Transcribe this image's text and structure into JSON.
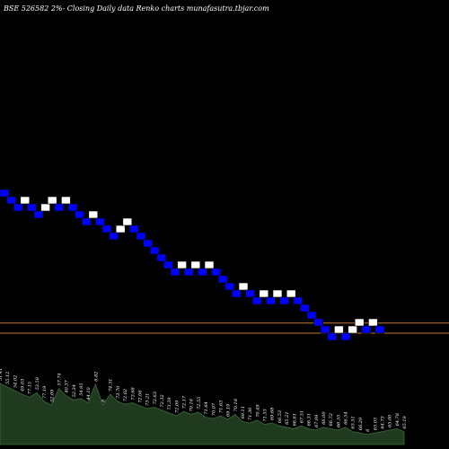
{
  "chart_data": {
    "type": "renko",
    "title": "BSE 526582  2%-  Closing Daily data  Renko  charts munafasutra.tbjar.com",
    "colors": {
      "background": "#000000",
      "up_fill": "#ffffff",
      "down_fill": "#0000ff",
      "brick_stroke": "#000000",
      "reference_line": "#c87533",
      "volume_fill": "#1f3a1f",
      "volume_stroke": "#3a6b3a"
    },
    "reference_lines": [
      {
        "level": -18.6
      },
      {
        "level": -20.0
      }
    ],
    "bricks": [
      {
        "index": 0,
        "level": 0,
        "dir": "down"
      },
      {
        "index": 1,
        "level": -1,
        "dir": "down"
      },
      {
        "index": 2,
        "level": -2,
        "dir": "down"
      },
      {
        "index": 3,
        "level": -1,
        "dir": "up"
      },
      {
        "index": 4,
        "level": -2,
        "dir": "down"
      },
      {
        "index": 5,
        "level": -3,
        "dir": "down"
      },
      {
        "index": 6,
        "level": -2,
        "dir": "up"
      },
      {
        "index": 7,
        "level": -1,
        "dir": "up"
      },
      {
        "index": 8,
        "level": -2,
        "dir": "down"
      },
      {
        "index": 9,
        "level": -1,
        "dir": "up"
      },
      {
        "index": 10,
        "level": -2,
        "dir": "down"
      },
      {
        "index": 11,
        "level": -3,
        "dir": "down"
      },
      {
        "index": 12,
        "level": -4,
        "dir": "down"
      },
      {
        "index": 13,
        "level": -3,
        "dir": "up"
      },
      {
        "index": 14,
        "level": -4,
        "dir": "down"
      },
      {
        "index": 15,
        "level": -5,
        "dir": "down"
      },
      {
        "index": 16,
        "level": -6,
        "dir": "down"
      },
      {
        "index": 17,
        "level": -5,
        "dir": "up"
      },
      {
        "index": 18,
        "level": -4,
        "dir": "up"
      },
      {
        "index": 19,
        "level": -5,
        "dir": "down"
      },
      {
        "index": 20,
        "level": -6,
        "dir": "down"
      },
      {
        "index": 21,
        "level": -7,
        "dir": "down"
      },
      {
        "index": 22,
        "level": -8,
        "dir": "down"
      },
      {
        "index": 23,
        "level": -9,
        "dir": "down"
      },
      {
        "index": 24,
        "level": -10,
        "dir": "down"
      },
      {
        "index": 25,
        "level": -11,
        "dir": "down"
      },
      {
        "index": 26,
        "level": -10,
        "dir": "up"
      },
      {
        "index": 27,
        "level": -11,
        "dir": "down"
      },
      {
        "index": 28,
        "level": -10,
        "dir": "up"
      },
      {
        "index": 29,
        "level": -11,
        "dir": "down"
      },
      {
        "index": 30,
        "level": -10,
        "dir": "up"
      },
      {
        "index": 31,
        "level": -11,
        "dir": "down"
      },
      {
        "index": 32,
        "level": -12,
        "dir": "down"
      },
      {
        "index": 33,
        "level": -13,
        "dir": "down"
      },
      {
        "index": 34,
        "level": -14,
        "dir": "down"
      },
      {
        "index": 35,
        "level": -13,
        "dir": "up"
      },
      {
        "index": 36,
        "level": -14,
        "dir": "down"
      },
      {
        "index": 37,
        "level": -15,
        "dir": "down"
      },
      {
        "index": 38,
        "level": -14,
        "dir": "up"
      },
      {
        "index": 39,
        "level": -15,
        "dir": "down"
      },
      {
        "index": 40,
        "level": -14,
        "dir": "up"
      },
      {
        "index": 41,
        "level": -15,
        "dir": "down"
      },
      {
        "index": 42,
        "level": -14,
        "dir": "up"
      },
      {
        "index": 43,
        "level": -15,
        "dir": "down"
      },
      {
        "index": 44,
        "level": -16,
        "dir": "down"
      },
      {
        "index": 45,
        "level": -17,
        "dir": "down"
      },
      {
        "index": 46,
        "level": -18,
        "dir": "down"
      },
      {
        "index": 47,
        "level": -19,
        "dir": "down"
      },
      {
        "index": 48,
        "level": -20,
        "dir": "down"
      },
      {
        "index": 49,
        "level": -19,
        "dir": "up"
      },
      {
        "index": 50,
        "level": -20,
        "dir": "down"
      },
      {
        "index": 51,
        "level": -19,
        "dir": "up"
      },
      {
        "index": 52,
        "level": -18,
        "dir": "up"
      },
      {
        "index": 53,
        "level": -19,
        "dir": "down"
      },
      {
        "index": 54,
        "level": -18,
        "dir": "up"
      },
      {
        "index": 55,
        "level": -19,
        "dir": "down"
      }
    ],
    "volume": [
      {
        "height": 0.85,
        "label": "51.41"
      },
      {
        "height": 0.8,
        "label": "55.12"
      },
      {
        "height": 0.75,
        "label": "54.02"
      },
      {
        "height": 0.7,
        "label": "49.03"
      },
      {
        "height": 0.66,
        "label": "77.15"
      },
      {
        "height": 0.72,
        "label": "53.58"
      },
      {
        "height": 0.6,
        "label": "77.19"
      },
      {
        "height": 0.55,
        "label": "52.09"
      },
      {
        "height": 0.78,
        "label": "57.74"
      },
      {
        "height": 0.68,
        "label": "40.37"
      },
      {
        "height": 0.62,
        "label": "52.34"
      },
      {
        "height": 0.64,
        "label": "54.95"
      },
      {
        "height": 0.58,
        "label": "44.10"
      },
      {
        "height": 0.84,
        "label": "6.82"
      },
      {
        "height": 0.55,
        "label": "8"
      },
      {
        "height": 0.7,
        "label": "74.31"
      },
      {
        "height": 0.6,
        "label": "73.70"
      },
      {
        "height": 0.56,
        "label": "72.02"
      },
      {
        "height": 0.58,
        "label": "73.68"
      },
      {
        "height": 0.54,
        "label": "72.06"
      },
      {
        "height": 0.5,
        "label": "73.21"
      },
      {
        "height": 0.52,
        "label": "72.63"
      },
      {
        "height": 0.48,
        "label": "72.32"
      },
      {
        "height": 0.44,
        "label": "73.39"
      },
      {
        "height": 0.4,
        "label": "72.09"
      },
      {
        "height": 0.46,
        "label": "72.17"
      },
      {
        "height": 0.42,
        "label": "70.16"
      },
      {
        "height": 0.45,
        "label": "72.55"
      },
      {
        "height": 0.38,
        "label": "71.64"
      },
      {
        "height": 0.36,
        "label": "70.07"
      },
      {
        "height": 0.4,
        "label": "71.63"
      },
      {
        "height": 0.35,
        "label": "69.19"
      },
      {
        "height": 0.42,
        "label": "70.18"
      },
      {
        "height": 0.32,
        "label": "69.11"
      },
      {
        "height": 0.3,
        "label": "71.30"
      },
      {
        "height": 0.34,
        "label": "70.49"
      },
      {
        "height": 0.28,
        "label": "71.53"
      },
      {
        "height": 0.3,
        "label": "69.68"
      },
      {
        "height": 0.26,
        "label": "66.53"
      },
      {
        "height": 0.24,
        "label": "65.21"
      },
      {
        "height": 0.22,
        "label": "66.61"
      },
      {
        "height": 0.26,
        "label": "67.51"
      },
      {
        "height": 0.22,
        "label": "66.31"
      },
      {
        "height": 0.2,
        "label": "67.09"
      },
      {
        "height": 0.24,
        "label": "66.00"
      },
      {
        "height": 0.22,
        "label": "66.72"
      },
      {
        "height": 0.2,
        "label": "66.55"
      },
      {
        "height": 0.24,
        "label": "66.54"
      },
      {
        "height": 0.18,
        "label": "65.51"
      },
      {
        "height": 0.16,
        "label": "66.29"
      },
      {
        "height": 0.14,
        "label": "6"
      },
      {
        "height": 0.16,
        "label": "65.03"
      },
      {
        "height": 0.18,
        "label": "64.73"
      },
      {
        "height": 0.2,
        "label": "65.00"
      },
      {
        "height": 0.22,
        "label": "64.78"
      },
      {
        "height": 0.18,
        "label": "65.19"
      }
    ]
  }
}
